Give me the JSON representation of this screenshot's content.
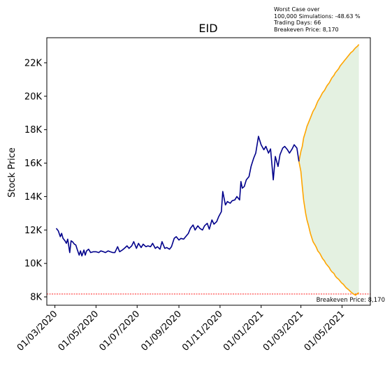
{
  "chart_data": {
    "type": "line",
    "title": "EID",
    "xlabel": "",
    "ylabel": "Stock Price",
    "ylim": [
      7500,
      23500
    ],
    "xlim": [
      "2020-02-18",
      "2021-06-12"
    ],
    "y_ticks": [
      {
        "value": 8000,
        "label": "8K"
      },
      {
        "value": 10000,
        "label": "10K"
      },
      {
        "value": 12000,
        "label": "12K"
      },
      {
        "value": 14000,
        "label": "14K"
      },
      {
        "value": 16000,
        "label": "16K"
      },
      {
        "value": 18000,
        "label": "18K"
      },
      {
        "value": 20000,
        "label": "20K"
      },
      {
        "value": 22000,
        "label": "22K"
      }
    ],
    "x_ticks": [
      {
        "date": "2020-03-01",
        "label": "01/03/2020"
      },
      {
        "date": "2020-05-01",
        "label": "01/05/2020"
      },
      {
        "date": "2020-07-01",
        "label": "01/07/2020"
      },
      {
        "date": "2020-09-01",
        "label": "01/09/2020"
      },
      {
        "date": "2020-11-01",
        "label": "01/11/2020"
      },
      {
        "date": "2021-01-01",
        "label": "01/01/2021"
      },
      {
        "date": "2021-03-01",
        "label": "01/03/2021"
      },
      {
        "date": "2021-05-01",
        "label": "01/05/2021"
      }
    ],
    "historical": {
      "color": "#00008b",
      "points": [
        [
          "2020-03-03",
          12100
        ],
        [
          "2020-03-06",
          11950
        ],
        [
          "2020-03-09",
          11600
        ],
        [
          "2020-03-11",
          11800
        ],
        [
          "2020-03-13",
          11500
        ],
        [
          "2020-03-16",
          11350
        ],
        [
          "2020-03-18",
          11200
        ],
        [
          "2020-03-20",
          11450
        ],
        [
          "2020-03-23",
          10650
        ],
        [
          "2020-03-25",
          11350
        ],
        [
          "2020-03-27",
          11300
        ],
        [
          "2020-03-30",
          11150
        ],
        [
          "2020-04-01",
          11100
        ],
        [
          "2020-04-03",
          10850
        ],
        [
          "2020-04-06",
          10500
        ],
        [
          "2020-04-08",
          10750
        ],
        [
          "2020-04-10",
          10450
        ],
        [
          "2020-04-13",
          10800
        ],
        [
          "2020-04-15",
          10500
        ],
        [
          "2020-04-17",
          10750
        ],
        [
          "2020-04-20",
          10850
        ],
        [
          "2020-04-23",
          10650
        ],
        [
          "2020-04-27",
          10700
        ],
        [
          "2020-05-01",
          10700
        ],
        [
          "2020-05-05",
          10650
        ],
        [
          "2020-05-08",
          10750
        ],
        [
          "2020-05-12",
          10700
        ],
        [
          "2020-05-15",
          10650
        ],
        [
          "2020-05-19",
          10750
        ],
        [
          "2020-05-22",
          10700
        ],
        [
          "2020-05-26",
          10650
        ],
        [
          "2020-05-29",
          10650
        ],
        [
          "2020-06-02",
          11000
        ],
        [
          "2020-06-05",
          10700
        ],
        [
          "2020-06-09",
          10800
        ],
        [
          "2020-06-12",
          10900
        ],
        [
          "2020-06-16",
          11050
        ],
        [
          "2020-06-19",
          10900
        ],
        [
          "2020-06-23",
          11050
        ],
        [
          "2020-06-26",
          11300
        ],
        [
          "2020-06-30",
          10900
        ],
        [
          "2020-07-03",
          11200
        ],
        [
          "2020-07-07",
          10950
        ],
        [
          "2020-07-10",
          11150
        ],
        [
          "2020-07-14",
          11000
        ],
        [
          "2020-07-17",
          11050
        ],
        [
          "2020-07-21",
          11000
        ],
        [
          "2020-07-24",
          11200
        ],
        [
          "2020-07-28",
          10900
        ],
        [
          "2020-07-31",
          11000
        ],
        [
          "2020-08-04",
          10850
        ],
        [
          "2020-08-07",
          11300
        ],
        [
          "2020-08-11",
          10900
        ],
        [
          "2020-08-14",
          10950
        ],
        [
          "2020-08-18",
          10850
        ],
        [
          "2020-08-21",
          11000
        ],
        [
          "2020-08-25",
          11500
        ],
        [
          "2020-08-28",
          11600
        ],
        [
          "2020-09-01",
          11400
        ],
        [
          "2020-09-04",
          11500
        ],
        [
          "2020-09-08",
          11450
        ],
        [
          "2020-09-11",
          11600
        ],
        [
          "2020-09-15",
          11800
        ],
        [
          "2020-09-18",
          12100
        ],
        [
          "2020-09-22",
          12300
        ],
        [
          "2020-09-25",
          12000
        ],
        [
          "2020-09-29",
          12250
        ],
        [
          "2020-10-02",
          12100
        ],
        [
          "2020-10-06",
          12000
        ],
        [
          "2020-10-09",
          12250
        ],
        [
          "2020-10-13",
          12400
        ],
        [
          "2020-10-16",
          12050
        ],
        [
          "2020-10-20",
          12600
        ],
        [
          "2020-10-23",
          12350
        ],
        [
          "2020-10-27",
          12500
        ],
        [
          "2020-10-30",
          12800
        ],
        [
          "2020-11-03",
          13100
        ],
        [
          "2020-11-05",
          14300
        ],
        [
          "2020-11-09",
          13500
        ],
        [
          "2020-11-12",
          13700
        ],
        [
          "2020-11-16",
          13600
        ],
        [
          "2020-11-19",
          13750
        ],
        [
          "2020-11-23",
          13800
        ],
        [
          "2020-11-26",
          14000
        ],
        [
          "2020-11-30",
          13800
        ],
        [
          "2020-12-02",
          14900
        ],
        [
          "2020-12-04",
          14500
        ],
        [
          "2020-12-07",
          14600
        ],
        [
          "2020-12-10",
          15000
        ],
        [
          "2020-12-14",
          15200
        ],
        [
          "2020-12-17",
          15800
        ],
        [
          "2020-12-21",
          16300
        ],
        [
          "2020-12-24",
          16600
        ],
        [
          "2020-12-28",
          17600
        ],
        [
          "2021-01-01",
          17100
        ],
        [
          "2021-01-05",
          16800
        ],
        [
          "2021-01-08",
          17000
        ],
        [
          "2021-01-12",
          16600
        ],
        [
          "2021-01-15",
          16850
        ],
        [
          "2021-01-19",
          15000
        ],
        [
          "2021-01-22",
          16400
        ],
        [
          "2021-01-26",
          15800
        ],
        [
          "2021-01-29",
          16500
        ],
        [
          "2021-02-02",
          16900
        ],
        [
          "2021-02-05",
          17000
        ],
        [
          "2021-02-09",
          16800
        ],
        [
          "2021-02-12",
          16600
        ],
        [
          "2021-02-16",
          16850
        ],
        [
          "2021-02-19",
          17100
        ],
        [
          "2021-02-23",
          16900
        ],
        [
          "2021-02-26",
          16100
        ]
      ]
    },
    "worst_case": {
      "color": "#ffa500",
      "points": [
        [
          "2021-02-26",
          16100
        ],
        [
          "2021-03-01",
          15500
        ],
        [
          "2021-03-03",
          14600
        ],
        [
          "2021-03-05",
          13800
        ],
        [
          "2021-03-08",
          13000
        ],
        [
          "2021-03-10",
          12600
        ],
        [
          "2021-03-12",
          12300
        ],
        [
          "2021-03-15",
          11800
        ],
        [
          "2021-03-17",
          11550
        ],
        [
          "2021-03-19",
          11300
        ],
        [
          "2021-03-22",
          11100
        ],
        [
          "2021-03-24",
          10950
        ],
        [
          "2021-03-26",
          10750
        ],
        [
          "2021-03-29",
          10600
        ],
        [
          "2021-03-31",
          10450
        ],
        [
          "2021-04-02",
          10300
        ],
        [
          "2021-04-05",
          10150
        ],
        [
          "2021-04-07",
          10000
        ],
        [
          "2021-04-09",
          9900
        ],
        [
          "2021-04-12",
          9750
        ],
        [
          "2021-04-14",
          9600
        ],
        [
          "2021-04-16",
          9500
        ],
        [
          "2021-04-19",
          9400
        ],
        [
          "2021-04-21",
          9250
        ],
        [
          "2021-04-23",
          9150
        ],
        [
          "2021-04-26",
          9050
        ],
        [
          "2021-04-28",
          8950
        ],
        [
          "2021-04-30",
          8850
        ],
        [
          "2021-05-03",
          8750
        ],
        [
          "2021-05-05",
          8650
        ],
        [
          "2021-05-07",
          8550
        ],
        [
          "2021-05-10",
          8450
        ],
        [
          "2021-05-12",
          8380
        ],
        [
          "2021-05-14",
          8300
        ],
        [
          "2021-05-17",
          8200
        ],
        [
          "2021-05-19",
          8150
        ],
        [
          "2021-05-21",
          8100
        ],
        [
          "2021-05-24",
          8200
        ],
        [
          "2021-05-26",
          8250
        ]
      ]
    },
    "best_case": {
      "color": "#ffa500",
      "points": [
        [
          "2021-02-26",
          16100
        ],
        [
          "2021-03-01",
          16700
        ],
        [
          "2021-03-03",
          17000
        ],
        [
          "2021-03-05",
          17500
        ],
        [
          "2021-03-08",
          17900
        ],
        [
          "2021-03-10",
          18200
        ],
        [
          "2021-03-12",
          18400
        ],
        [
          "2021-03-15",
          18700
        ],
        [
          "2021-03-17",
          18900
        ],
        [
          "2021-03-19",
          19100
        ],
        [
          "2021-03-22",
          19300
        ],
        [
          "2021-03-24",
          19500
        ],
        [
          "2021-03-26",
          19700
        ],
        [
          "2021-03-29",
          19900
        ],
        [
          "2021-03-31",
          20050
        ],
        [
          "2021-04-02",
          20200
        ],
        [
          "2021-04-05",
          20350
        ],
        [
          "2021-04-07",
          20500
        ],
        [
          "2021-04-09",
          20650
        ],
        [
          "2021-04-12",
          20800
        ],
        [
          "2021-04-14",
          20950
        ],
        [
          "2021-04-16",
          21100
        ],
        [
          "2021-04-19",
          21250
        ],
        [
          "2021-04-21",
          21400
        ],
        [
          "2021-04-23",
          21500
        ],
        [
          "2021-04-26",
          21650
        ],
        [
          "2021-04-28",
          21800
        ],
        [
          "2021-04-30",
          21900
        ],
        [
          "2021-05-03",
          22050
        ],
        [
          "2021-05-05",
          22150
        ],
        [
          "2021-05-07",
          22250
        ],
        [
          "2021-05-10",
          22400
        ],
        [
          "2021-05-12",
          22500
        ],
        [
          "2021-05-14",
          22600
        ],
        [
          "2021-05-17",
          22700
        ],
        [
          "2021-05-19",
          22800
        ],
        [
          "2021-05-21",
          22900
        ],
        [
          "2021-05-24",
          23000
        ],
        [
          "2021-05-26",
          23100
        ]
      ]
    },
    "fill_color": "#cde6c8",
    "breakeven": {
      "value": 8170,
      "color": "#ff0000",
      "label": "Breakeven Price: 8,170"
    },
    "annotation": [
      "Worst Case over",
      "100,000 Simulations: -48.63 %",
      "Trading Days: 66",
      "Breakeven Price: 8,170"
    ],
    "grid": false,
    "legend": "none"
  }
}
